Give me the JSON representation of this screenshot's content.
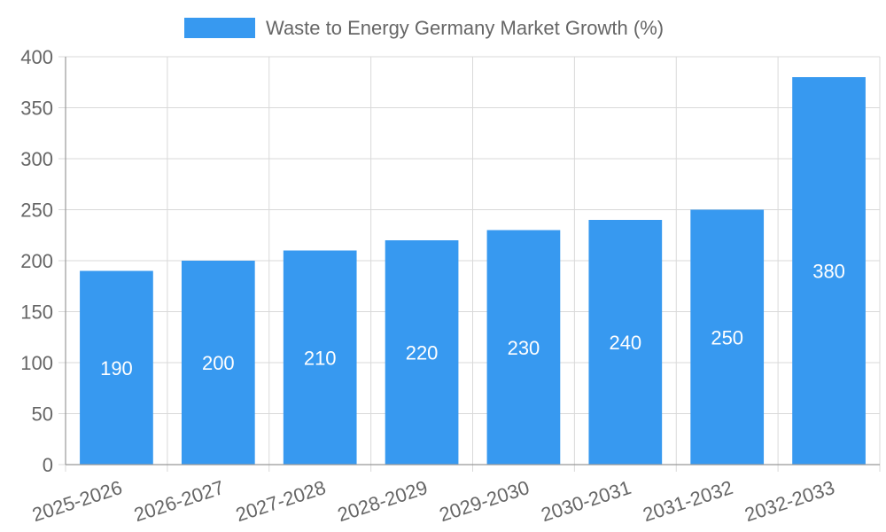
{
  "chart_data": {
    "type": "bar",
    "legend": {
      "label": "Waste to Energy Germany Market Growth (%)",
      "position": "top-center"
    },
    "categories": [
      "2025-2026",
      "2026-2027",
      "2027-2028",
      "2028-2029",
      "2029-2030",
      "2030-2031",
      "2031-2032",
      "2032-2033"
    ],
    "series": [
      {
        "name": "Waste to Energy Germany Market Growth (%)",
        "values": [
          190,
          200,
          210,
          220,
          230,
          240,
          250,
          380
        ]
      }
    ],
    "data_labels": [
      "190",
      "200",
      "210",
      "220",
      "230",
      "240",
      "250",
      "380"
    ],
    "y_ticks": [
      "0",
      "50",
      "100",
      "150",
      "200",
      "250",
      "300",
      "350",
      "400"
    ],
    "ylim": [
      0,
      400
    ],
    "grid": true,
    "colors": {
      "bar": "#3799f0",
      "grid": "#d9d9d9",
      "axis": "#999999",
      "tick_text": "#666666",
      "legend_text": "#666666",
      "data_label": "#ffffff"
    }
  }
}
